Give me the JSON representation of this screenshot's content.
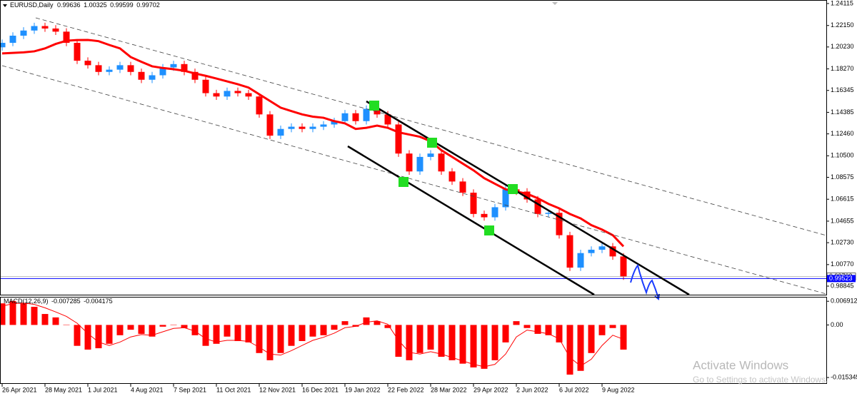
{
  "chart_data": [
    {
      "type": "candlestick",
      "header": {
        "symbol": "EURUSD,Daily",
        "values": [
          0.99636,
          1.00325,
          0.99599,
          0.99702
        ]
      },
      "categories": [
        "26 Apr 2021",
        null,
        null,
        null,
        "28 May 2021",
        null,
        null,
        null,
        "1 Jul 2021",
        null,
        null,
        null,
        "4 Aug 2021",
        null,
        null,
        null,
        "7 Sep 2021",
        null,
        null,
        null,
        "11 Oct 2021",
        null,
        null,
        null,
        "12 Nov 2021",
        null,
        null,
        null,
        "16 Dec 2021",
        null,
        null,
        null,
        "19 Jan 2022",
        null,
        null,
        null,
        "22 Feb 2022",
        null,
        null,
        null,
        "28 Mar 2022",
        null,
        null,
        null,
        "29 Apr 2022",
        null,
        null,
        null,
        "2 Jun 2022",
        null,
        null,
        null,
        "6 Jul 2022",
        null,
        null,
        null,
        "9 Aug 2022",
        null,
        null
      ],
      "open": [
        1.202,
        1.206,
        1.2124,
        1.217,
        1.221,
        1.2188,
        1.216,
        1.206,
        1.19,
        1.186,
        1.18,
        1.182,
        1.186,
        1.18,
        1.173,
        1.177,
        1.184,
        1.187,
        1.18,
        1.173,
        1.161,
        1.158,
        1.163,
        1.161,
        1.158,
        1.142,
        1.123,
        1.129,
        1.131,
        1.129,
        1.131,
        1.133,
        1.136,
        1.143,
        1.136,
        1.147,
        1.142,
        1.133,
        1.107,
        1.091,
        1.104,
        1.107,
        1.091,
        1.082,
        1.072,
        1.053,
        1.05,
        1.059,
        1.075,
        1.073,
        1.066,
        1.053,
        1.054,
        1.034,
        1.005,
        1.018,
        1.021,
        1.024,
        1.015
      ],
      "high": [
        1.209,
        1.2154,
        1.22,
        1.224,
        1.224,
        1.2218,
        1.219,
        1.209,
        1.193,
        1.189,
        1.185,
        1.189,
        1.189,
        1.183,
        1.18,
        1.187,
        1.19,
        1.19,
        1.183,
        1.176,
        1.164,
        1.166,
        1.166,
        1.164,
        1.161,
        1.145,
        1.132,
        1.134,
        1.134,
        1.134,
        1.136,
        1.139,
        1.146,
        1.146,
        1.15,
        1.15,
        1.145,
        1.136,
        1.11,
        1.107,
        1.11,
        1.11,
        1.094,
        1.085,
        1.075,
        1.056,
        1.062,
        1.078,
        1.078,
        1.076,
        1.069,
        1.057,
        1.057,
        1.037,
        1.021,
        1.024,
        1.027,
        1.027,
        1.018
      ],
      "low": [
        1.199,
        1.203,
        1.2094,
        1.214,
        1.2158,
        1.213,
        1.203,
        1.187,
        1.183,
        1.177,
        1.177,
        1.179,
        1.177,
        1.17,
        1.17,
        1.174,
        1.181,
        1.177,
        1.17,
        1.158,
        1.155,
        1.155,
        1.158,
        1.155,
        1.139,
        1.12,
        1.12,
        1.126,
        1.126,
        1.126,
        1.128,
        1.13,
        1.133,
        1.133,
        1.133,
        1.139,
        1.13,
        1.104,
        1.088,
        1.088,
        1.101,
        1.088,
        1.079,
        1.069,
        1.05,
        1.047,
        1.047,
        1.056,
        1.07,
        1.063,
        1.05,
        1.05,
        1.031,
        1.002,
        1.002,
        1.015,
        1.018,
        1.012,
        0.994
      ],
      "close": [
        1.206,
        1.2124,
        1.217,
        1.221,
        1.2188,
        1.216,
        1.206,
        1.19,
        1.186,
        1.18,
        1.182,
        1.186,
        1.18,
        1.173,
        1.177,
        1.184,
        1.187,
        1.18,
        1.173,
        1.161,
        1.158,
        1.163,
        1.161,
        1.158,
        1.142,
        1.123,
        1.129,
        1.131,
        1.129,
        1.131,
        1.133,
        1.136,
        1.143,
        1.136,
        1.147,
        1.142,
        1.133,
        1.107,
        1.091,
        1.104,
        1.107,
        1.091,
        1.082,
        1.072,
        1.053,
        1.05,
        1.059,
        1.075,
        1.073,
        1.066,
        1.053,
        1.054,
        1.034,
        1.005,
        1.018,
        1.021,
        1.024,
        1.015,
        0.99702
      ],
      "up_color": "#1e90ff",
      "down_color": "#ff0000",
      "ma": {
        "color": "#ff0000",
        "values": [
          1.1965,
          1.197,
          1.1975,
          1.1984,
          1.201,
          1.205,
          1.2079,
          1.2085,
          1.2086,
          1.2075,
          1.2041,
          1.201,
          1.1933,
          1.189,
          1.185,
          1.1835,
          1.1824,
          1.181,
          1.1786,
          1.1765,
          1.1741,
          1.1715,
          1.169,
          1.166,
          1.16,
          1.154,
          1.148,
          1.145,
          1.142,
          1.14,
          1.139,
          1.136,
          1.134,
          1.129,
          1.13,
          1.132,
          1.13,
          1.126,
          1.124,
          1.122,
          1.118,
          1.11,
          1.104,
          1.098,
          1.092,
          1.085,
          1.08,
          1.075,
          1.073,
          1.071,
          1.067,
          1.062,
          1.058,
          1.053,
          1.049,
          1.043,
          1.039,
          1.034,
          1.024
        ]
      },
      "hline": {
        "value": 0.99523,
        "color": "#0000ff"
      },
      "last_price": 0.99702,
      "ylim": [
        0.9808,
        1.2443
      ],
      "yticks": [
        1.24115,
        {
          "value": 1.2215,
          "label": "1.22150"
        },
        {
          "value": 1.2023,
          "label": "1.20230"
        },
        {
          "value": 1.1827,
          "label": "1.18270"
        },
        1.16345,
        1.14385,
        {
          "value": 1.1246,
          "label": "1.12460"
        },
        {
          "value": 1.105,
          "label": "1.10500"
        },
        1.08575,
        1.06615,
        1.04655,
        {
          "value": 1.0273,
          "label": "1.02730"
        },
        {
          "value": 1.0077,
          "label": "1.00770"
        },
        0.98845
      ]
    },
    {
      "type": "bar",
      "header": {
        "name": "MACD(12,26,9)",
        "values": [
          -0.007285,
          -0.004175
        ]
      },
      "color": "#ff0000",
      "values": [
        0.0063,
        0.007,
        0.0063,
        0.0053,
        0.0032,
        0.0022,
        0.0001,
        -0.0061,
        -0.0072,
        -0.0068,
        -0.0055,
        -0.003,
        -0.0014,
        -0.0026,
        -0.0034,
        -0.0005,
        0.0001,
        -0.0009,
        -0.003,
        -0.0061,
        -0.0055,
        -0.0034,
        -0.0047,
        -0.0051,
        -0.0082,
        -0.0103,
        -0.0082,
        -0.0061,
        -0.0047,
        -0.0034,
        -0.003,
        -0.0014,
        0.0011,
        -0.0005,
        0.0022,
        0.0011,
        -0.0009,
        -0.0093,
        -0.0103,
        -0.0082,
        -0.0072,
        -0.0093,
        -0.0103,
        -0.0113,
        -0.0124,
        -0.0128,
        -0.0103,
        -0.0051,
        0.0011,
        -0.0009,
        -0.0026,
        -0.003,
        -0.0051,
        -0.0145,
        -0.0134,
        -0.0082,
        -0.003,
        -0.0009,
        -0.0072
      ],
      "signal": {
        "color": "#ff0000",
        "values": [
          0.0055,
          0.0062,
          0.0064,
          0.006,
          0.005,
          0.0038,
          0.0025,
          0.0005,
          -0.0025,
          -0.005,
          -0.006,
          -0.005,
          -0.0035,
          -0.0028,
          -0.003,
          -0.002,
          -0.001,
          -0.0008,
          -0.0018,
          -0.004,
          -0.005,
          -0.0045,
          -0.0045,
          -0.0048,
          -0.0065,
          -0.0085,
          -0.0088,
          -0.0075,
          -0.006,
          -0.0045,
          -0.0036,
          -0.0024,
          -0.0008,
          -0.0004,
          0.0008,
          0.0012,
          0.0002,
          -0.0045,
          -0.008,
          -0.0085,
          -0.0078,
          -0.0085,
          -0.0095,
          -0.0105,
          -0.0115,
          -0.0122,
          -0.0115,
          -0.0085,
          -0.0035,
          -0.0015,
          -0.002,
          -0.0026,
          -0.004,
          -0.0095,
          -0.012,
          -0.01,
          -0.006,
          -0.003,
          -0.0042
        ]
      },
      "ylim": [
        -0.0172,
        0.008
      ],
      "yticks": [
        0.006912,
        {
          "value": 0,
          "label": "0.00"
        },
        -0.015345
      ]
    }
  ],
  "watermark": {
    "title": "Activate Windows",
    "text": "Go to Settings to activate Windows."
  }
}
